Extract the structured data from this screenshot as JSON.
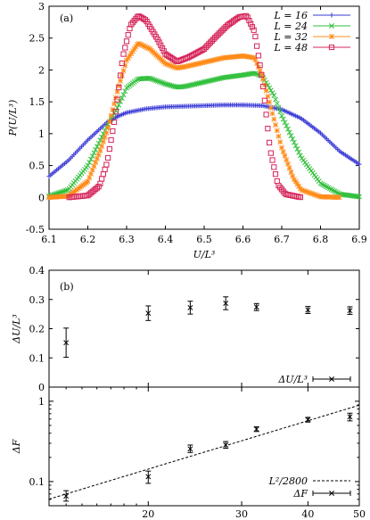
{
  "chart_data": [
    {
      "type": "scatter",
      "panel_label": "(a)",
      "xlabel": "U/L³",
      "ylabel": "P(U/L³)",
      "xlim": [
        6.1,
        6.9
      ],
      "ylim": [
        -0.5,
        3.0
      ],
      "x_ticks": [
        "6.1",
        "6.2",
        "6.3",
        "6.4",
        "6.5",
        "6.6",
        "6.7",
        "6.8",
        "6.9"
      ],
      "y_ticks": [
        "-0.5",
        "0",
        "0.5",
        "1",
        "1.5",
        "2",
        "2.5",
        "3"
      ],
      "legend_position": "top-right",
      "series": [
        {
          "name": "L = 16",
          "color": "#3a3ad6",
          "marker": "plus",
          "x": [
            6.1,
            6.15,
            6.2,
            6.25,
            6.28,
            6.3,
            6.35,
            6.4,
            6.45,
            6.5,
            6.55,
            6.6,
            6.65,
            6.7,
            6.75,
            6.8,
            6.85,
            6.9
          ],
          "y": [
            0.33,
            0.58,
            0.9,
            1.18,
            1.28,
            1.33,
            1.39,
            1.42,
            1.43,
            1.44,
            1.45,
            1.45,
            1.44,
            1.38,
            1.24,
            1.01,
            0.72,
            0.52
          ]
        },
        {
          "name": "L = 24",
          "color": "#2fbf3a",
          "marker": "cross",
          "x": [
            6.1,
            6.15,
            6.2,
            6.25,
            6.28,
            6.3,
            6.33,
            6.36,
            6.4,
            6.43,
            6.45,
            6.5,
            6.55,
            6.6,
            6.63,
            6.65,
            6.68,
            6.7,
            6.75,
            6.8,
            6.85,
            6.9
          ],
          "y": [
            0.02,
            0.12,
            0.5,
            1.12,
            1.45,
            1.72,
            1.86,
            1.87,
            1.78,
            1.73,
            1.74,
            1.81,
            1.88,
            1.92,
            1.95,
            1.9,
            1.6,
            1.28,
            0.63,
            0.22,
            0.05,
            0.01
          ]
        },
        {
          "name": "L = 32",
          "color": "#ff8c1a",
          "marker": "star",
          "x": [
            6.1,
            6.15,
            6.2,
            6.23,
            6.25,
            6.28,
            6.3,
            6.33,
            6.36,
            6.4,
            6.43,
            6.45,
            6.5,
            6.55,
            6.6,
            6.63,
            6.65,
            6.67,
            6.7,
            6.73,
            6.75,
            6.8,
            6.85
          ],
          "y": [
            0.0,
            0.02,
            0.25,
            0.7,
            1.05,
            1.75,
            2.15,
            2.42,
            2.33,
            2.1,
            2.03,
            2.05,
            2.12,
            2.19,
            2.22,
            2.19,
            1.9,
            1.45,
            0.78,
            0.3,
            0.12,
            0.01,
            0.0
          ]
        },
        {
          "name": "L = 48",
          "color": "#d6245a",
          "marker": "square",
          "x": [
            6.15,
            6.2,
            6.23,
            6.25,
            6.27,
            6.29,
            6.31,
            6.33,
            6.35,
            6.38,
            6.4,
            6.43,
            6.46,
            6.5,
            6.53,
            6.56,
            6.59,
            6.61,
            6.63,
            6.65,
            6.67,
            6.69,
            6.71,
            6.75
          ],
          "y": [
            0.0,
            0.03,
            0.18,
            0.55,
            1.25,
            2.2,
            2.7,
            2.85,
            2.78,
            2.48,
            2.25,
            2.13,
            2.2,
            2.33,
            2.52,
            2.7,
            2.83,
            2.85,
            2.6,
            1.85,
            0.75,
            0.2,
            0.05,
            0.0
          ]
        }
      ]
    },
    {
      "type": "scatter",
      "panel_label": "(b)",
      "ylabel": "ΔU/L³",
      "ylim": [
        0,
        0.4
      ],
      "xlim": [
        13,
        50
      ],
      "y_ticks": [
        "0",
        "0.1",
        "0.2",
        "0.3",
        "0.4"
      ],
      "legend_position": "bottom-right",
      "series": [
        {
          "name": "ΔU/L³",
          "marker": "cross",
          "error_bars": true,
          "x": [
            14,
            20,
            24,
            28,
            32,
            40,
            48
          ],
          "y": [
            0.152,
            0.253,
            0.272,
            0.287,
            0.274,
            0.264,
            0.262
          ],
          "err": [
            0.05,
            0.025,
            0.022,
            0.022,
            0.012,
            0.012,
            0.013
          ]
        }
      ]
    },
    {
      "type": "scatter",
      "ylabel": "ΔF",
      "xlabel": "L",
      "x_scale": "log",
      "y_scale": "log",
      "xlim": [
        13,
        50
      ],
      "ylim": [
        0.05,
        1.5
      ],
      "x_ticks": [
        "20",
        "30",
        "40",
        "50"
      ],
      "y_ticks": [
        "0.1",
        "1"
      ],
      "legend_position": "bottom-right",
      "series": [
        {
          "name": "L²/2800",
          "style": "dashed-line",
          "x": [
            13,
            50
          ],
          "y": [
            0.0604,
            0.893
          ]
        },
        {
          "name": "ΔF",
          "marker": "cross",
          "error_bars": true,
          "x": [
            14,
            20,
            24,
            28,
            32,
            40,
            48
          ],
          "y": [
            0.066,
            0.115,
            0.255,
            0.285,
            0.45,
            0.59,
            0.64
          ],
          "err_lo": [
            0.057,
            0.095,
            0.23,
            0.26,
            0.42,
            0.55,
            0.57
          ],
          "err_hi": [
            0.077,
            0.135,
            0.285,
            0.315,
            0.48,
            0.63,
            0.71
          ]
        }
      ]
    }
  ]
}
